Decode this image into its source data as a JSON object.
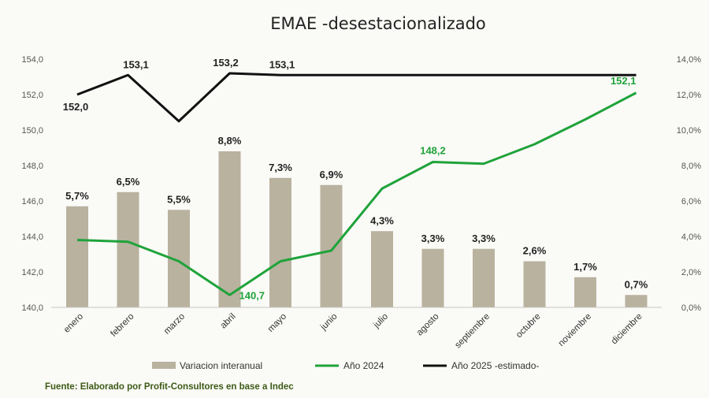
{
  "chart_data": {
    "type": "bar",
    "title": "EMAE -desestacionalizado",
    "categories": [
      "enero",
      "febrero",
      "marzo",
      "abril",
      "mayo",
      "junio",
      "julio",
      "agosto",
      "septiembre",
      "octubre",
      "noviembre",
      "diciembre"
    ],
    "y_left": {
      "ylim": [
        140,
        154
      ],
      "ticks": [
        "140,0",
        "142,0",
        "144,0",
        "146,0",
        "148,0",
        "150,0",
        "152,0",
        "154,0"
      ]
    },
    "y_right": {
      "ylim": [
        0,
        14
      ],
      "ticks": [
        "0,0%",
        "2,0%",
        "4,0%",
        "6,0%",
        "8,0%",
        "10,0%",
        "12,0%",
        "14,0%"
      ]
    },
    "grid": false,
    "legend_position": "bottom",
    "series": [
      {
        "name": "Variacion interanual",
        "kind": "bar",
        "axis": "right",
        "color": "#b9b29f",
        "values": [
          5.7,
          6.5,
          5.5,
          8.8,
          7.3,
          6.9,
          4.3,
          3.3,
          3.3,
          2.6,
          1.7,
          0.7
        ],
        "labels": [
          "5,7%",
          "6,5%",
          "5,5%",
          "8,8%",
          "7,3%",
          "6,9%",
          "4,3%",
          "3,3%",
          "3,3%",
          "2,6%",
          "1,7%",
          "0,7%"
        ]
      },
      {
        "name": "Año 2024",
        "kind": "line",
        "axis": "left",
        "color": "#1fa33a",
        "values": [
          143.8,
          143.7,
          142.6,
          140.7,
          142.6,
          143.2,
          146.7,
          148.2,
          148.1,
          149.2,
          150.6,
          152.1
        ],
        "labels": [
          "",
          "",
          "",
          "140,7",
          "",
          "",
          "",
          "148,2",
          "",
          "",
          "",
          "152,1"
        ]
      },
      {
        "name": "Año 2025 -estimado-",
        "kind": "line",
        "axis": "left",
        "color": "#111111",
        "values": [
          152.0,
          153.1,
          150.5,
          153.2,
          153.1,
          153.1,
          153.1,
          153.1,
          153.1,
          153.1,
          153.1,
          153.1
        ],
        "labels": [
          "152,0",
          "153,1",
          "",
          "153,2",
          "153,1",
          "",
          "",
          "",
          "",
          "",
          "",
          ""
        ]
      }
    ],
    "source": "Fuente: Elaborado por Profit-Consultores en base a Indec"
  }
}
